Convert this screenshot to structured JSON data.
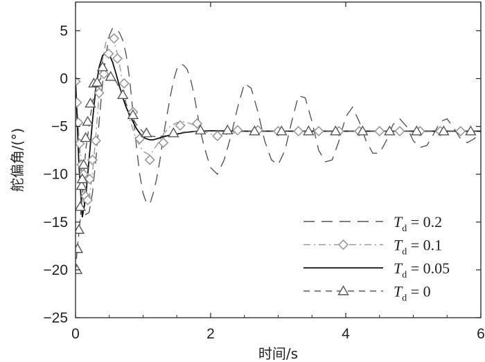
{
  "chart_data": {
    "type": "line",
    "xlabel": "时间/s",
    "ylabel": "舵偏角/(°)",
    "xlim": [
      0,
      6
    ],
    "ylim": [
      -25,
      8
    ],
    "x_ticks": [
      0,
      2,
      4,
      6
    ],
    "y_ticks": [
      5,
      0,
      -5,
      -10,
      -15,
      -20,
      -25
    ],
    "x_tick_labels": [
      "0",
      "2",
      "4",
      "6"
    ],
    "y_tick_labels": [
      "5",
      "0",
      "−5",
      "−10",
      "−15",
      "−20",
      "−25"
    ],
    "grid": false,
    "legend_position": "lower-right",
    "series": [
      {
        "name": "T_d = 0.2",
        "legend_main": "T",
        "legend_sub": "d",
        "legend_value": " = 0.2",
        "style": "dash-long",
        "color": "#555555",
        "marker": "none",
        "x": [
          0.0,
          0.05,
          0.1,
          0.15,
          0.2,
          0.25,
          0.3,
          0.35,
          0.4,
          0.45,
          0.5,
          0.55,
          0.6,
          0.65,
          0.7,
          0.75,
          0.8,
          0.85,
          0.9,
          0.95,
          1.0,
          1.05,
          1.1,
          1.15,
          1.2,
          1.25,
          1.3,
          1.35,
          1.4,
          1.45,
          1.5,
          1.55,
          1.6,
          1.65,
          1.7,
          1.75,
          1.8,
          1.85,
          1.9,
          1.95,
          2.0,
          2.1,
          2.2,
          2.3,
          2.4,
          2.5,
          2.6,
          2.7,
          2.8,
          2.9,
          3.0,
          3.1,
          3.2,
          3.3,
          3.4,
          3.5,
          3.6,
          3.7,
          3.8,
          3.9,
          4.0,
          4.1,
          4.2,
          4.3,
          4.4,
          4.5,
          4.6,
          4.7,
          4.8,
          4.9,
          5.0,
          5.1,
          5.2,
          5.3,
          5.4,
          5.5,
          5.6,
          5.7,
          5.8,
          5.9,
          6.0
        ],
        "y": [
          -1.0,
          -6.5,
          -11.5,
          -14.2,
          -14.0,
          -12.0,
          -8.5,
          -4.5,
          -0.5,
          2.5,
          4.5,
          5.3,
          5.2,
          4.8,
          4.0,
          2.5,
          0.0,
          -3.5,
          -7.0,
          -10.0,
          -12.0,
          -13.0,
          -13.1,
          -12.0,
          -10.5,
          -8.5,
          -6.0,
          -4.0,
          -2.0,
          -0.2,
          1.0,
          1.5,
          1.4,
          1.0,
          0.0,
          -1.5,
          -3.5,
          -5.5,
          -7.0,
          -8.2,
          -9.3,
          -10.0,
          -8.5,
          -6.0,
          -3.0,
          -0.5,
          -1.0,
          -3.5,
          -6.5,
          -8.5,
          -9.0,
          -7.5,
          -4.5,
          -1.8,
          -2.0,
          -4.5,
          -7.5,
          -8.7,
          -8.5,
          -6.5,
          -4.0,
          -3.0,
          -4.5,
          -6.5,
          -7.8,
          -7.8,
          -6.5,
          -4.8,
          -4.2,
          -5.0,
          -6.5,
          -7.2,
          -7.0,
          -5.8,
          -4.5,
          -4.2,
          -5.2,
          -6.3,
          -6.7,
          -6.3,
          -5.5
        ]
      },
      {
        "name": "T_d = 0.1",
        "legend_main": "T",
        "legend_sub": "d",
        "legend_value": " = 0.1",
        "style": "dash-dot",
        "color": "#999999",
        "marker": "diamond",
        "x": [
          0.0,
          0.05,
          0.1,
          0.15,
          0.2,
          0.25,
          0.3,
          0.35,
          0.4,
          0.45,
          0.5,
          0.55,
          0.6,
          0.65,
          0.7,
          0.75,
          0.8,
          0.9,
          1.0,
          1.1,
          1.2,
          1.3,
          1.4,
          1.5,
          1.6,
          1.7,
          1.8,
          1.9,
          2.0,
          2.2,
          2.4,
          2.6,
          2.8,
          3.0,
          3.5,
          4.0,
          4.5,
          5.0,
          5.5,
          6.0
        ],
        "y": [
          -0.5,
          -6.0,
          -10.5,
          -12.8,
          -12.7,
          -10.0,
          -6.0,
          -1.5,
          2.0,
          3.8,
          4.5,
          4.3,
          3.2,
          1.5,
          -0.5,
          -2.5,
          -4.2,
          -6.4,
          -7.6,
          -8.0,
          -7.0,
          -5.8,
          -5.0,
          -4.6,
          -4.5,
          -4.7,
          -5.0,
          -5.5,
          -5.8,
          -5.9,
          -5.6,
          -5.5,
          -5.5,
          -5.5,
          -5.5,
          -5.5,
          -5.5,
          -5.5,
          -5.5,
          -5.5
        ],
        "marker_x": [
          0.0,
          0.02,
          0.04,
          0.06,
          0.09,
          0.12,
          0.15,
          0.18,
          0.21,
          0.25,
          0.3,
          0.35,
          0.42,
          0.49,
          0.57,
          0.62,
          0.72,
          0.85,
          0.95,
          1.1,
          1.3,
          1.55,
          1.8,
          2.1,
          2.4,
          2.7,
          3.0,
          3.3,
          3.6,
          3.9,
          4.2,
          4.5,
          4.8,
          5.1,
          5.4,
          5.7
        ],
        "marker_y": [
          -0.3,
          -2.5,
          -4.6,
          -6.8,
          -9.0,
          -10.0,
          -12.3,
          -12.7,
          -10.5,
          -8.5,
          -6.5,
          -1.5,
          0.5,
          2.6,
          4.2,
          2.1,
          -0.5,
          -3.5,
          -6.3,
          -8.5,
          -6.7,
          -4.9,
          -4.7,
          -6.0,
          -5.4,
          -5.4,
          -5.5,
          -5.5,
          -5.5,
          -5.5,
          -5.5,
          -5.5,
          -5.5,
          -5.5,
          -5.5,
          -5.5
        ]
      },
      {
        "name": "T_d = 0.05",
        "legend_main": "T",
        "legend_sub": "d",
        "legend_value": " = 0.05",
        "style": "solid",
        "color": "#111111",
        "marker": "none",
        "x": [
          0.0,
          0.05,
          0.1,
          0.15,
          0.2,
          0.25,
          0.3,
          0.35,
          0.4,
          0.45,
          0.5,
          0.55,
          0.6,
          0.65,
          0.7,
          0.75,
          0.8,
          0.85,
          0.9,
          0.95,
          1.0,
          1.05,
          1.1,
          1.15,
          1.2,
          1.3,
          1.4,
          1.5,
          1.6,
          1.8,
          2.0,
          2.5,
          3.0,
          4.0,
          5.0,
          6.0
        ],
        "y": [
          0.0,
          -9.0,
          -14.5,
          -12.5,
          -8.5,
          -4.5,
          -1.0,
          1.2,
          2.4,
          2.7,
          2.5,
          1.7,
          0.5,
          -0.8,
          -2.0,
          -3.0,
          -3.8,
          -4.5,
          -5.2,
          -5.7,
          -6.1,
          -6.3,
          -6.4,
          -6.4,
          -6.3,
          -6.1,
          -5.9,
          -5.8,
          -5.65,
          -5.5,
          -5.45,
          -5.5,
          -5.5,
          -5.5,
          -5.5,
          -5.5
        ]
      },
      {
        "name": "T_d = 0",
        "legend_main": "T",
        "legend_sub": "d",
        "legend_value": " = 0",
        "style": "dash",
        "color": "#555555",
        "marker": "triangle",
        "x": [
          0.0,
          0.03,
          0.06,
          0.09,
          0.12,
          0.15,
          0.2,
          0.25,
          0.3,
          0.35,
          0.4,
          0.45,
          0.5,
          0.55,
          0.6,
          0.65,
          0.7,
          0.8,
          0.9,
          1.0,
          1.1,
          1.2,
          1.4,
          1.6,
          1.8,
          2.0,
          2.5,
          3.0,
          4.0,
          5.0,
          6.0
        ],
        "y": [
          -20.0,
          -17.5,
          -15.5,
          -13.0,
          -10.5,
          -7.5,
          -5.0,
          -2.5,
          -1.0,
          -0.2,
          0.2,
          0.3,
          0.2,
          0.0,
          -0.3,
          -1.0,
          -1.8,
          -3.5,
          -4.8,
          -5.6,
          -6.0,
          -6.1,
          -5.9,
          -5.6,
          -5.5,
          -5.5,
          -5.5,
          -5.5,
          -5.5,
          -5.5,
          -5.5
        ],
        "marker_x": [
          0.02,
          0.03,
          0.05,
          0.07,
          0.09,
          0.1,
          0.12,
          0.15,
          0.18,
          0.22,
          0.27,
          0.32,
          0.4,
          0.52,
          0.7,
          0.85,
          1.05,
          1.45,
          1.85,
          2.25,
          2.65,
          3.05,
          3.45,
          3.85,
          4.25,
          4.65,
          5.05,
          5.45,
          5.85
        ],
        "marker_y": [
          -20.0,
          -17.8,
          -15.8,
          -13.4,
          -11.2,
          -10.5,
          -9.0,
          -6.2,
          -4.5,
          -2.6,
          -0.5,
          -0.4,
          1.2,
          0.2,
          -1.7,
          -3.8,
          -5.7,
          -5.7,
          -5.4,
          -5.4,
          -5.5,
          -5.5,
          -5.5,
          -5.5,
          -5.5,
          -5.5,
          -5.5,
          -5.5,
          -5.5
        ]
      }
    ]
  }
}
